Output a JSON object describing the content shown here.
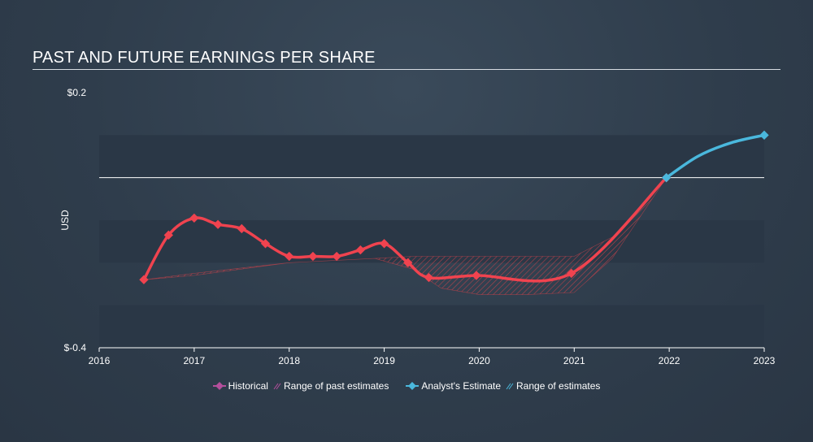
{
  "title": "PAST AND FUTURE EARNINGS PER SHARE",
  "colors": {
    "historical": "#f0434f",
    "historical_legend": "#b44f9c",
    "range_past": "#c8424a",
    "estimate": "#4ab8dd",
    "band": "#2a3746",
    "zero_line": "#ffffff"
  },
  "legend": {
    "historical": "Historical",
    "range_past": "Range of past estimates",
    "estimate": "Analyst's Estimate",
    "range_estimates": "Range of estimates"
  },
  "chart_data": {
    "type": "line",
    "title": "PAST AND FUTURE EARNINGS PER SHARE",
    "ylabel": "USD",
    "y_tick_labels": [
      "$0.2",
      "$-0.4"
    ],
    "x_tick_labels": [
      "2016",
      "2017",
      "2018",
      "2019",
      "2020",
      "2021",
      "2022",
      "2023"
    ],
    "xlim": [
      2016,
      2023
    ],
    "ylim": [
      -0.4,
      0.2
    ],
    "series": [
      {
        "name": "Historical",
        "x": [
          2016.47,
          2016.73,
          2017.0,
          2017.25,
          2017.5,
          2017.75,
          2018.0,
          2018.25,
          2018.5,
          2018.75,
          2019.0,
          2019.25,
          2019.47,
          2019.97,
          2020.97,
          2021.97
        ],
        "y": [
          -0.24,
          -0.135,
          -0.095,
          -0.11,
          -0.12,
          -0.155,
          -0.185,
          -0.185,
          -0.185,
          -0.17,
          -0.155,
          -0.2,
          -0.235,
          -0.23,
          -0.225,
          0.0
        ]
      },
      {
        "name": "Analyst's Estimate",
        "x": [
          2021.97,
          2022.3,
          2022.65,
          2023.0
        ],
        "y": [
          0.0,
          0.05,
          0.082,
          0.1
        ]
      }
    ],
    "range_of_past_estimates": {
      "x": [
        2016.47,
        2017.0,
        2018.0,
        2018.9,
        2019.3,
        2019.6,
        2020.0,
        2020.5,
        2021.0,
        2021.4,
        2021.97
      ],
      "low": [
        -0.24,
        -0.23,
        -0.2,
        -0.19,
        -0.215,
        -0.26,
        -0.275,
        -0.275,
        -0.27,
        -0.19,
        0.0
      ],
      "high": [
        -0.24,
        -0.225,
        -0.2,
        -0.19,
        -0.185,
        -0.185,
        -0.185,
        -0.185,
        -0.185,
        -0.14,
        0.0
      ]
    },
    "grid": false
  }
}
